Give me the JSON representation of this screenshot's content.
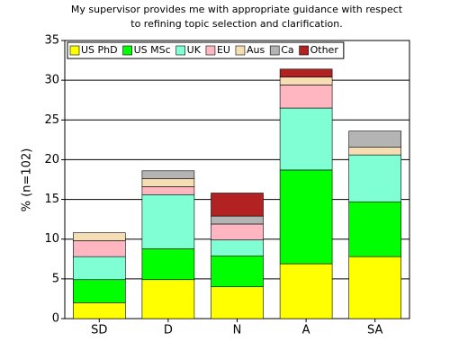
{
  "chart_data": {
    "type": "bar",
    "stacked": true,
    "title": [
      "My supervisor provides me with appropriate guidance with respect",
      "to refining topic selection and clarification."
    ],
    "y_label": "% (n=102)",
    "categories": [
      "SD",
      "D",
      "N",
      "A",
      "SA"
    ],
    "series": [
      {
        "name": "US PhD",
        "color": "#ffff00",
        "values": [
          2.0,
          4.9,
          4.0,
          6.9,
          7.8
        ]
      },
      {
        "name": "US MSc",
        "color": "#00ff00",
        "values": [
          2.9,
          3.9,
          3.9,
          11.8,
          6.9
        ]
      },
      {
        "name": "UK",
        "color": "#80ffd4",
        "values": [
          2.9,
          6.8,
          2.0,
          7.8,
          5.9
        ]
      },
      {
        "name": "EU",
        "color": "#ffb6c1",
        "values": [
          2.0,
          1.0,
          2.0,
          2.9,
          0
        ]
      },
      {
        "name": "Aus",
        "color": "#f5deb3",
        "values": [
          1.0,
          1.0,
          0,
          1.0,
          1.0
        ]
      },
      {
        "name": "Ca",
        "color": "#b4b4b4",
        "values": [
          0,
          1.0,
          1.0,
          0,
          2.0
        ]
      },
      {
        "name": "Other",
        "color": "#b22222",
        "values": [
          0,
          0,
          2.9,
          1.0,
          0
        ]
      }
    ],
    "ylim": [
      0,
      35
    ],
    "yticks": [
      0,
      5,
      10,
      15,
      20,
      25,
      30,
      35
    ],
    "grid": true,
    "legend": "top-left"
  }
}
